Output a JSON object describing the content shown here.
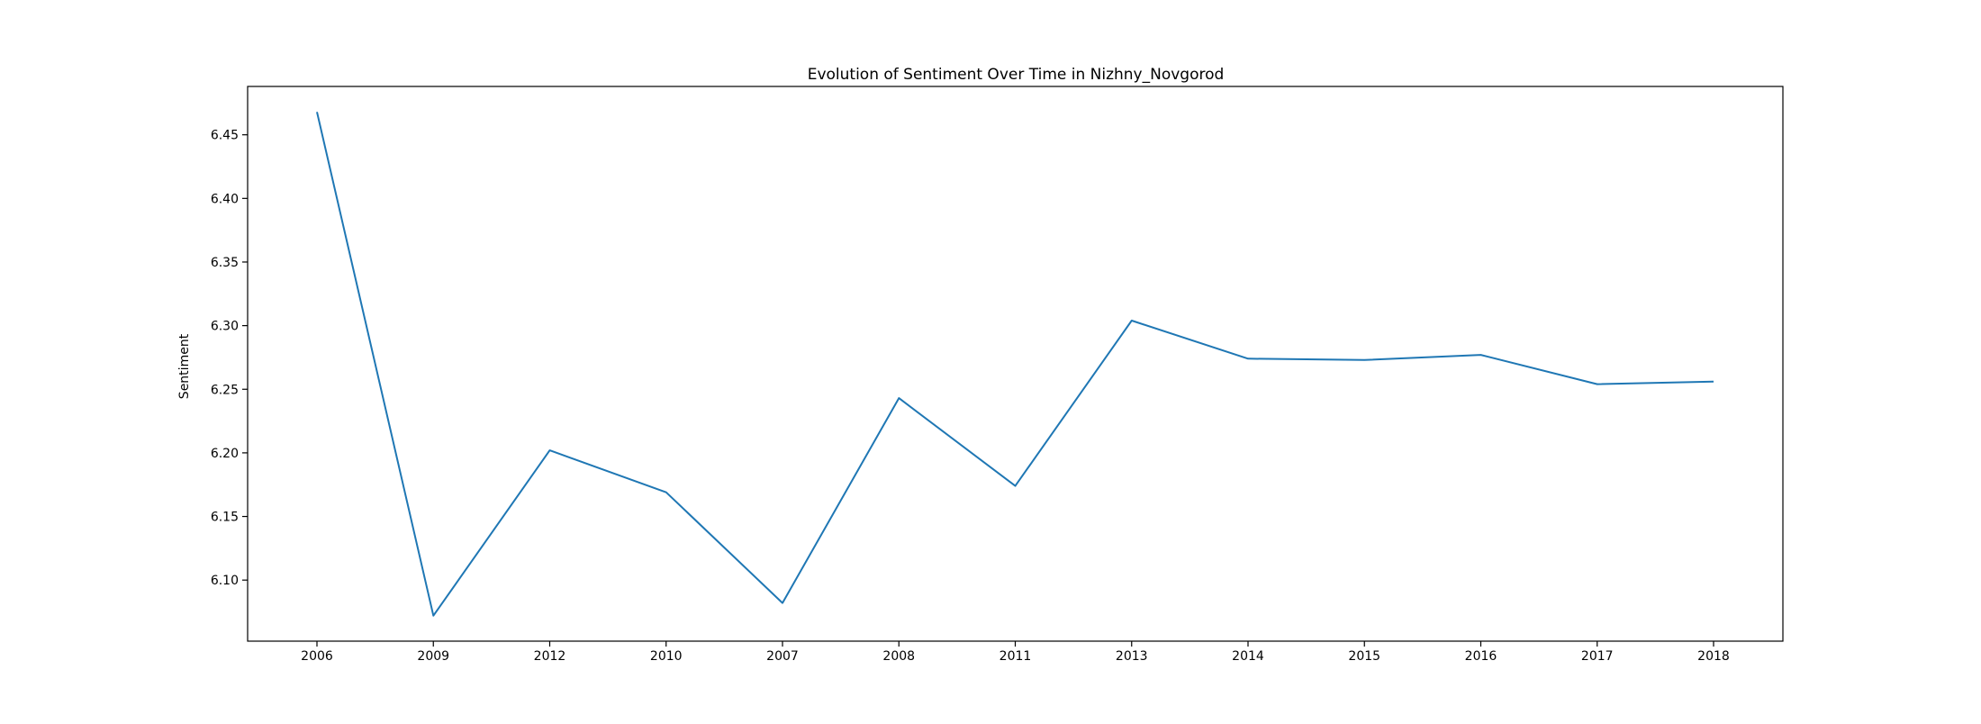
{
  "chart_data": {
    "type": "line",
    "title": "Evolution of Sentiment Over Time in Nizhny_Novgorod",
    "xlabel": "",
    "ylabel": "Sentiment",
    "categories": [
      "2006",
      "2009",
      "2012",
      "2010",
      "2007",
      "2008",
      "2011",
      "2013",
      "2014",
      "2015",
      "2016",
      "2017",
      "2018"
    ],
    "series": [
      {
        "values": [
          6.468,
          6.072,
          6.202,
          6.169,
          6.082,
          6.243,
          6.174,
          6.304,
          6.274,
          6.273,
          6.277,
          6.254,
          6.256
        ]
      }
    ],
    "yticks": [
      "6.10",
      "6.15",
      "6.20",
      "6.25",
      "6.30",
      "6.35",
      "6.40",
      "6.45"
    ],
    "ylim": [
      6.052,
      6.488
    ],
    "grid": false,
    "legend": "none",
    "colors": {
      "line": "#1f77b4",
      "axes": "#000000",
      "background": "#ffffff"
    }
  }
}
